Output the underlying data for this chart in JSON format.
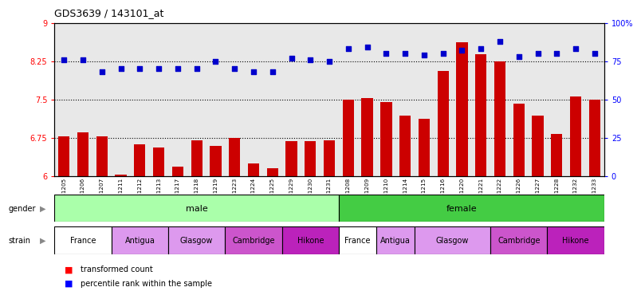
{
  "title": "GDS3639 / 143101_at",
  "samples": [
    "GSM231205",
    "GSM231206",
    "GSM231207",
    "GSM231211",
    "GSM231212",
    "GSM231213",
    "GSM231217",
    "GSM231218",
    "GSM231219",
    "GSM231223",
    "GSM231224",
    "GSM231225",
    "GSM231229",
    "GSM231230",
    "GSM231231",
    "GSM231208",
    "GSM231209",
    "GSM231210",
    "GSM231214",
    "GSM231215",
    "GSM231216",
    "GSM231220",
    "GSM231221",
    "GSM231222",
    "GSM231226",
    "GSM231227",
    "GSM231228",
    "GSM231232",
    "GSM231233"
  ],
  "bar_values": [
    6.78,
    6.85,
    6.78,
    6.02,
    6.62,
    6.55,
    6.18,
    6.7,
    6.58,
    6.75,
    6.25,
    6.15,
    6.68,
    6.68,
    6.7,
    7.5,
    7.52,
    7.45,
    7.18,
    7.12,
    8.05,
    8.62,
    8.38,
    8.25,
    7.42,
    7.18,
    6.82,
    7.55,
    7.5
  ],
  "percentile_values": [
    76,
    76,
    68,
    70,
    70,
    70,
    70,
    70,
    75,
    70,
    68,
    68,
    77,
    76,
    75,
    83,
    84,
    80,
    80,
    79,
    80,
    82,
    83,
    88,
    78,
    80,
    80,
    83,
    80
  ],
  "ylim_left": [
    6,
    9
  ],
  "ylim_right": [
    0,
    100
  ],
  "yticks_left": [
    6,
    6.75,
    7.5,
    8.25,
    9
  ],
  "yticks_right": [
    0,
    25,
    50,
    75,
    100
  ],
  "ytick_labels_left": [
    "6",
    "6.75",
    "7.5",
    "8.25",
    "9"
  ],
  "ytick_labels_right": [
    "0",
    "25",
    "50",
    "75",
    "100%"
  ],
  "bar_color": "#cc0000",
  "dot_color": "#0000cc",
  "plot_bg_color": "#e8e8e8",
  "gender_male_color": "#aaffaa",
  "gender_female_color": "#44cc44",
  "strain_colors": {
    "France": "#ffffff",
    "Antigua": "#dd99ee",
    "Glasgow": "#dd99ee",
    "Cambridge": "#cc55cc",
    "Hikone": "#bb22bb"
  },
  "hline_values": [
    6.75,
    7.5,
    8.25
  ],
  "dot_size": 25,
  "strain_spans": [
    {
      "label": "France",
      "start": 0,
      "end": 2
    },
    {
      "label": "Antigua",
      "start": 3,
      "end": 5
    },
    {
      "label": "Glasgow",
      "start": 6,
      "end": 8
    },
    {
      "label": "Cambridge",
      "start": 9,
      "end": 11
    },
    {
      "label": "Hikone",
      "start": 12,
      "end": 14
    },
    {
      "label": "France",
      "start": 15,
      "end": 16
    },
    {
      "label": "Antigua",
      "start": 17,
      "end": 18
    },
    {
      "label": "Glasgow",
      "start": 19,
      "end": 22
    },
    {
      "label": "Cambridge",
      "start": 23,
      "end": 25
    },
    {
      "label": "Hikone",
      "start": 26,
      "end": 28
    }
  ]
}
